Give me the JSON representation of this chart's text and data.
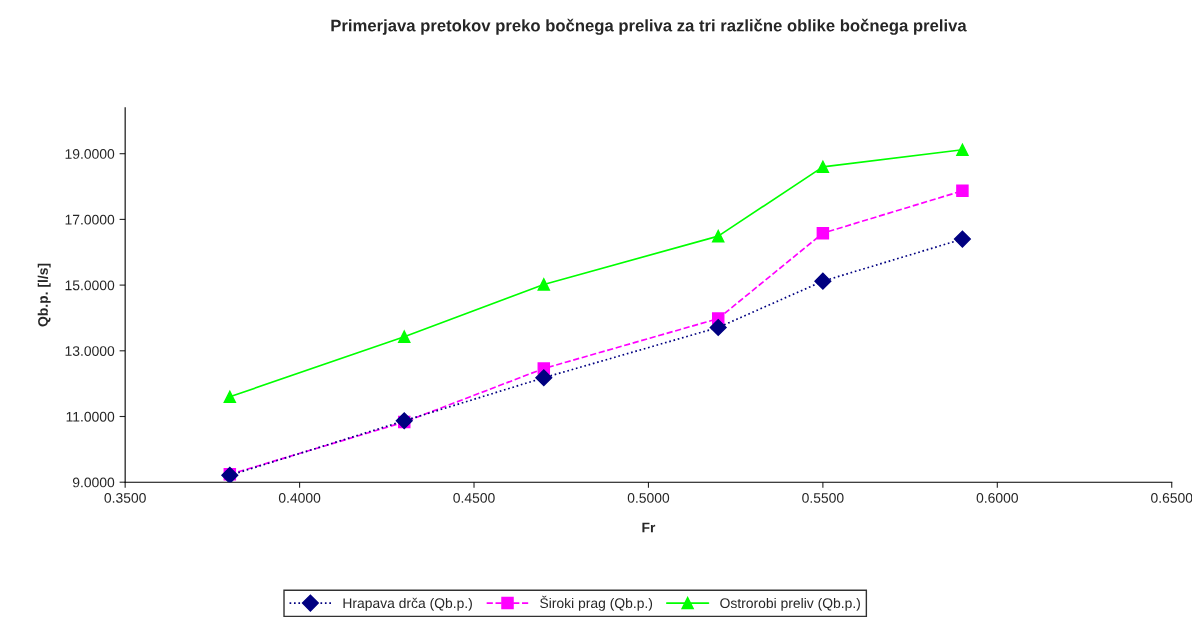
{
  "chart_data": {
    "type": "line",
    "title": "Primerjava pretokov preko bočnega preliva za tri različne oblike bočnega preliva",
    "xlabel": "Fr",
    "ylabel": "Qb.p. [l/s]",
    "x": [
      0.38,
      0.43,
      0.47,
      0.52,
      0.55,
      0.59
    ],
    "series": [
      {
        "name": "Hrapava drča (Qb.p.)",
        "color": "#000080",
        "marker": "diamond",
        "line_style": "dotted",
        "values": [
          9.21,
          10.87,
          12.18,
          13.71,
          15.12,
          16.4
        ]
      },
      {
        "name": "Široki prag (Qb.p.)",
        "color": "#ff00ff",
        "marker": "square",
        "line_style": "dashed",
        "values": [
          9.24,
          10.83,
          12.46,
          13.98,
          16.58,
          17.87
        ]
      },
      {
        "name": "Ostrorobi preliv (Qb.p.)",
        "color": "#00ff00",
        "marker": "triangle",
        "line_style": "solid",
        "values": [
          11.6,
          13.43,
          15.02,
          16.49,
          18.6,
          19.12
        ]
      }
    ],
    "xlim": [
      0.35,
      0.65
    ],
    "xticks": [
      {
        "value": 0.35,
        "label": "0.3500"
      },
      {
        "value": 0.4,
        "label": "0.4000"
      },
      {
        "value": 0.45,
        "label": "0.4500"
      },
      {
        "value": 0.5,
        "label": "0.5000"
      },
      {
        "value": 0.55,
        "label": "0.5500"
      },
      {
        "value": 0.6,
        "label": "0.6000"
      },
      {
        "value": 0.65,
        "label": "0.6500"
      }
    ],
    "ylim": [
      9,
      20.4
    ],
    "yticks": [
      {
        "value": 9,
        "label": "9.0000"
      },
      {
        "value": 11,
        "label": "11.0000"
      },
      {
        "value": 13,
        "label": "13.0000"
      },
      {
        "value": 15,
        "label": "15.0000"
      },
      {
        "value": 17,
        "label": "17.0000"
      },
      {
        "value": 19,
        "label": "19.0000"
      }
    ],
    "grid": false,
    "legend": "bottom"
  }
}
